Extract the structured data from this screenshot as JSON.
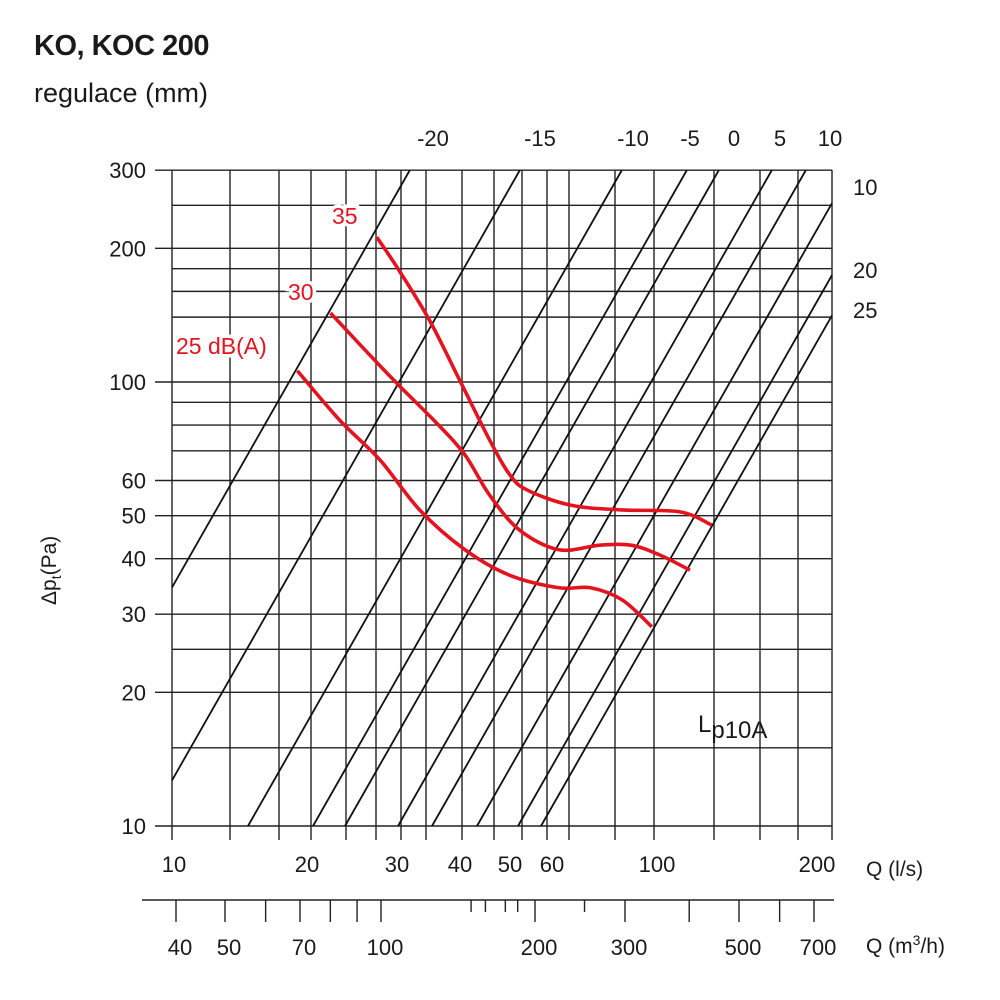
{
  "chart_data": {
    "type": "line",
    "title": "KO, KOC 200",
    "subtitle": "regulace (mm)",
    "ylabel": "Δpt(Pa)",
    "ylabel_main": "Δp",
    "ylabel_sub": "t",
    "ylabel_unit": "(Pa)",
    "xlabel": "Q (l/s)",
    "xlabel2_main": "Q (m",
    "xlabel2_sup": "3",
    "xlabel2_end": "/h)",
    "xscale": "log",
    "yscale": "log",
    "xlim": [
      10,
      200
    ],
    "ylim": [
      10,
      300
    ],
    "grid": true,
    "y_ticks": [
      300,
      200,
      100,
      60,
      50,
      40,
      30,
      20,
      10
    ],
    "x_ticks": [
      10,
      20,
      30,
      40,
      50,
      60,
      100,
      200
    ],
    "x2_ticks": [
      40,
      50,
      70,
      100,
      200,
      300,
      500,
      700
    ],
    "regulation_labels_top": [
      "-20",
      "-15",
      "-10",
      "-5",
      "0",
      "5",
      "10"
    ],
    "regulation_labels_right": [
      "10",
      "20",
      "25"
    ],
    "annotation": {
      "main": "L",
      "sub": "p10A"
    },
    "series_color": "#e3141f",
    "series": [
      {
        "name": "25 dB(A)",
        "label": "25 dB(A)",
        "points": [
          [
            18.6,
            106
          ],
          [
            22.6,
            82
          ],
          [
            27,
            66.7
          ],
          [
            32.3,
            51.5
          ],
          [
            40,
            41.9
          ],
          [
            54.2,
            36.7
          ],
          [
            68.1,
            34.4
          ],
          [
            76.9,
            34.4
          ],
          [
            86.8,
            32.3
          ],
          [
            97.3,
            28.1
          ]
        ]
      },
      {
        "name": "30",
        "label": "30",
        "points": [
          [
            21.7,
            143
          ],
          [
            25.8,
            115
          ],
          [
            29.3,
            98.4
          ],
          [
            35.3,
            80
          ],
          [
            40,
            68.5
          ],
          [
            47.5,
            55.6
          ],
          [
            57.6,
            46.4
          ],
          [
            68.1,
            41.9
          ],
          [
            79.6,
            42.9
          ],
          [
            89.8,
            42.9
          ],
          [
            100.2,
            40.8
          ],
          [
            113.2,
            37.7
          ]
        ]
      },
      {
        "name": "35",
        "label": "35",
        "points": [
          [
            26.6,
            212
          ],
          [
            29.3,
            179
          ],
          [
            33.8,
            138
          ],
          [
            39,
            101
          ],
          [
            47.5,
            74
          ],
          [
            54.2,
            61.8
          ],
          [
            60.3,
            57.1
          ],
          [
            71.2,
            52.8
          ],
          [
            86.8,
            51.5
          ],
          [
            108.8,
            51
          ],
          [
            123.6,
            47.6
          ]
        ]
      }
    ]
  }
}
